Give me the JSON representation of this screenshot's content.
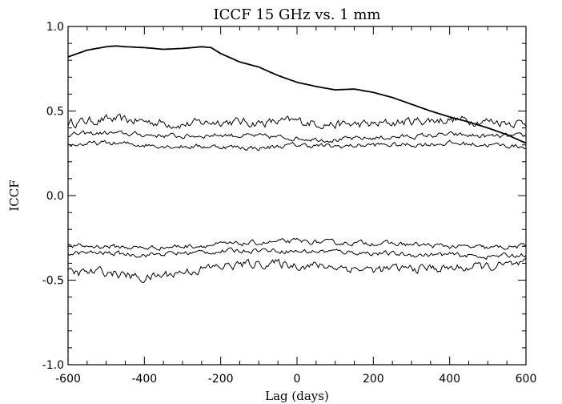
{
  "chart_data": {
    "type": "line",
    "title": "ICCF 15 GHz vs. 1 mm",
    "xlabel": "Lag (days)",
    "ylabel": "ICCF",
    "xlim": [
      -600,
      600
    ],
    "ylim": [
      -1.0,
      1.0
    ],
    "x_ticks": [
      "-600",
      "-400",
      "-200",
      "0",
      "200",
      "400",
      "600"
    ],
    "y_ticks": [
      "-1.0",
      "-0.5",
      "0.0",
      "0.5",
      "1.0"
    ],
    "grid": false,
    "series": [
      {
        "role": "ICCF",
        "x": [
          -600,
          -550,
          -500,
          -475,
          -450,
          -400,
          -350,
          -300,
          -275,
          -250,
          -225,
          -200,
          -150,
          -100,
          -50,
          0,
          50,
          100,
          150,
          200,
          250,
          300,
          350,
          400,
          450,
          500,
          550,
          600
        ],
        "y": [
          0.82,
          0.86,
          0.88,
          0.885,
          0.88,
          0.875,
          0.865,
          0.87,
          0.875,
          0.88,
          0.875,
          0.84,
          0.79,
          0.76,
          0.71,
          0.67,
          0.645,
          0.625,
          0.63,
          0.61,
          0.58,
          0.54,
          0.5,
          0.465,
          0.435,
          0.4,
          0.36,
          0.31
        ]
      },
      {
        "role": "upper significance level 1",
        "x": [
          -600,
          -500,
          -400,
          -300,
          -200,
          -100,
          0,
          100,
          200,
          300,
          400,
          500,
          600
        ],
        "y": [
          0.43,
          0.45,
          0.44,
          0.42,
          0.44,
          0.43,
          0.44,
          0.42,
          0.42,
          0.44,
          0.45,
          0.44,
          0.43
        ]
      },
      {
        "role": "upper significance level 2",
        "x": [
          -600,
          -500,
          -400,
          -300,
          -200,
          -100,
          0,
          100,
          200,
          300,
          400,
          500,
          600
        ],
        "y": [
          0.36,
          0.37,
          0.36,
          0.35,
          0.36,
          0.35,
          0.34,
          0.33,
          0.34,
          0.35,
          0.36,
          0.35,
          0.35
        ]
      },
      {
        "role": "upper significance level 3",
        "x": [
          -600,
          -500,
          -400,
          -300,
          -200,
          -100,
          0,
          100,
          200,
          300,
          400,
          500,
          600
        ],
        "y": [
          0.3,
          0.31,
          0.3,
          0.29,
          0.29,
          0.28,
          0.3,
          0.29,
          0.3,
          0.3,
          0.31,
          0.3,
          0.29
        ]
      },
      {
        "role": "lower significance level 1",
        "x": [
          -600,
          -500,
          -400,
          -300,
          -200,
          -100,
          0,
          100,
          200,
          300,
          400,
          500,
          600
        ],
        "y": [
          -0.3,
          -0.3,
          -0.31,
          -0.3,
          -0.29,
          -0.28,
          -0.27,
          -0.28,
          -0.28,
          -0.29,
          -0.3,
          -0.31,
          -0.3
        ]
      },
      {
        "role": "lower significance level 2",
        "x": [
          -600,
          -500,
          -400,
          -300,
          -200,
          -100,
          0,
          100,
          200,
          300,
          400,
          500,
          600
        ],
        "y": [
          -0.34,
          -0.34,
          -0.35,
          -0.34,
          -0.33,
          -0.32,
          -0.33,
          -0.33,
          -0.34,
          -0.35,
          -0.35,
          -0.36,
          -0.35
        ]
      },
      {
        "role": "lower significance level 3",
        "x": [
          -600,
          -500,
          -400,
          -300,
          -200,
          -100,
          0,
          100,
          200,
          300,
          400,
          500,
          600
        ],
        "y": [
          -0.46,
          -0.45,
          -0.49,
          -0.45,
          -0.42,
          -0.4,
          -0.41,
          -0.42,
          -0.44,
          -0.43,
          -0.43,
          -0.42,
          -0.41
        ]
      }
    ]
  }
}
